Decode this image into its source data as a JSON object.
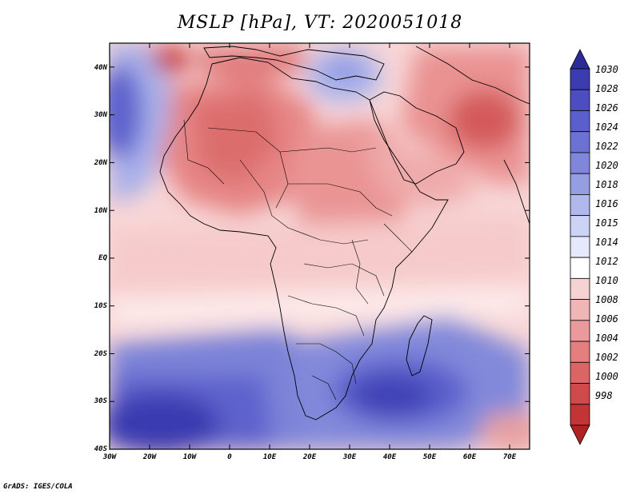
{
  "title": "MSLP [hPa], VT: 2020051018",
  "credit": "GrADS: IGES/COLA",
  "map": {
    "projection": "lat-lon",
    "lon_range": [
      -30,
      75
    ],
    "lat_range": [
      -40,
      45
    ],
    "lat_labels": [
      "40N",
      "30N",
      "20N",
      "10N",
      "EQ",
      "10S",
      "20S",
      "30S",
      "40S"
    ],
    "lon_labels": [
      "30W",
      "20W",
      "10W",
      "0",
      "10E",
      "20E",
      "30E",
      "40E",
      "50E",
      "60E",
      "70E"
    ]
  },
  "colorbar": {
    "levels": [
      "1030",
      "1028",
      "1026",
      "1024",
      "1022",
      "1020",
      "1018",
      "1016",
      "1015",
      "1014",
      "1012",
      "1010",
      "1008",
      "1006",
      "1004",
      "1002",
      "1000",
      "998"
    ],
    "colors": [
      "#2b2a9a",
      "#3b3cb0",
      "#4b4dc0",
      "#5b5fcc",
      "#6c71d4",
      "#8087da",
      "#969ee2",
      "#b0b8ec",
      "#ccd3f4",
      "#e6e9fb",
      "#ffffff",
      "#f6d3d3",
      "#f0b6b6",
      "#ea9a9a",
      "#e37f7f",
      "#db6565",
      "#cf4a4a",
      "#c33434",
      "#b02222"
    ],
    "unit": "hPa"
  }
}
